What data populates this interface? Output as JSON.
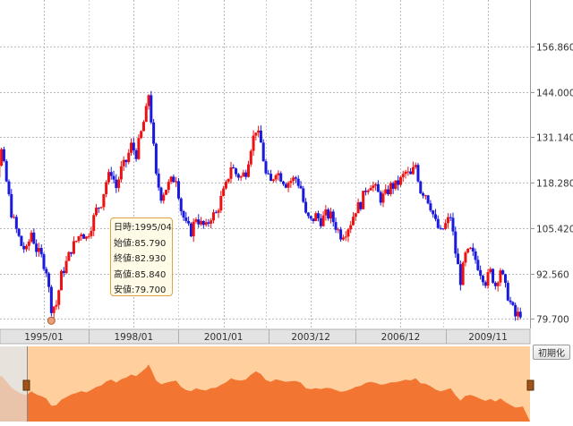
{
  "chart_data": {
    "type": "candlestick",
    "title": "",
    "xlabel": "",
    "ylabel": "",
    "x_tick_labels": [
      "1995/01",
      "1998/01",
      "2001/01",
      "2003/12",
      "2006/12",
      "2009/11"
    ],
    "y_tick_labels": [
      "156.860",
      "144.000",
      "131.140",
      "118.280",
      "105.420",
      "92.560",
      "79.700"
    ],
    "ylim": [
      77.0,
      170.0
    ],
    "grid": true,
    "up_color": "#ee1111",
    "down_color": "#1a1adf",
    "series": [
      {
        "points": [
          [
            "1992/10",
            128.5
          ],
          [
            "1992/12",
            130.6
          ],
          [
            "1993/02",
            125.0
          ],
          [
            "1993/04",
            116.8
          ],
          [
            "1993/06",
            121.0
          ],
          [
            "1993/08",
            127.2
          ],
          [
            "1993/10",
            118.5
          ],
          [
            "1993/12",
            109.8
          ],
          [
            "1994/02",
            104.9
          ],
          [
            "1994/04",
            100.5
          ],
          [
            "1994/06",
            98.9
          ],
          [
            "1994/08",
            104.3
          ],
          [
            "1994/10",
            99.4
          ],
          [
            "1994/12",
            97.2
          ],
          [
            "1995/02",
            93.5
          ],
          [
            "1995/03",
            88.0
          ],
          [
            "1995/04",
            82.93
          ],
          [
            "1995/06",
            83.8
          ],
          [
            "1995/08",
            92.0
          ],
          [
            "1995/10",
            95.6
          ],
          [
            "1995/12",
            99.5
          ],
          [
            "1996/02",
            101.8
          ],
          [
            "1996/04",
            104.5
          ],
          [
            "1996/06",
            102.6
          ],
          [
            "1996/08",
            106.2
          ],
          [
            "1996/10",
            110.5
          ],
          [
            "1996/12",
            112.7
          ],
          [
            "1997/02",
            118.6
          ],
          [
            "1997/04",
            121.4
          ],
          [
            "1997/06",
            116.9
          ],
          [
            "1997/08",
            122.0
          ],
          [
            "1997/10",
            124.3
          ],
          [
            "1997/12",
            128.8
          ],
          [
            "1998/02",
            126.4
          ],
          [
            "1998/04",
            132.3
          ],
          [
            "1998/06",
            138.5
          ],
          [
            "1998/07",
            143.4
          ],
          [
            "1998/08",
            136.2
          ],
          [
            "1998/10",
            119.8
          ],
          [
            "1998/12",
            114.5
          ],
          [
            "1999/02",
            116.8
          ],
          [
            "1999/04",
            118.7
          ],
          [
            "1999/06",
            119.9
          ],
          [
            "1999/08",
            110.7
          ],
          [
            "1999/10",
            106.2
          ],
          [
            "1999/12",
            104.4
          ],
          [
            "2000/02",
            108.6
          ],
          [
            "2000/04",
            106.5
          ],
          [
            "2000/06",
            105.6
          ],
          [
            "2000/08",
            108.8
          ],
          [
            "2000/10",
            109.4
          ],
          [
            "2000/12",
            113.7
          ],
          [
            "2001/02",
            117.3
          ],
          [
            "2001/04",
            123.1
          ],
          [
            "2001/06",
            120.8
          ],
          [
            "2001/08",
            119.8
          ],
          [
            "2001/10",
            121.5
          ],
          [
            "2001/12",
            128.6
          ],
          [
            "2002/02",
            133.5
          ],
          [
            "2002/04",
            129.4
          ],
          [
            "2002/06",
            120.5
          ],
          [
            "2002/08",
            118.2
          ],
          [
            "2002/10",
            121.8
          ],
          [
            "2002/12",
            119.9
          ],
          [
            "2003/02",
            118.1
          ],
          [
            "2003/04",
            118.9
          ],
          [
            "2003/06",
            119.5
          ],
          [
            "2003/08",
            116.8
          ],
          [
            "2003/10",
            108.9
          ],
          [
            "2003/12",
            107.3
          ],
          [
            "2004/02",
            108.9
          ],
          [
            "2004/04",
            107.5
          ],
          [
            "2004/06",
            109.2
          ],
          [
            "2004/08",
            108.8
          ],
          [
            "2004/10",
            106.0
          ],
          [
            "2004/12",
            103.5
          ],
          [
            "2005/02",
            104.6
          ],
          [
            "2005/04",
            107.1
          ],
          [
            "2005/06",
            110.8
          ],
          [
            "2005/08",
            112.3
          ],
          [
            "2005/10",
            116.5
          ],
          [
            "2005/12",
            118.1
          ],
          [
            "2006/02",
            116.4
          ],
          [
            "2006/04",
            113.8
          ],
          [
            "2006/06",
            114.9
          ],
          [
            "2006/08",
            117.2
          ],
          [
            "2006/10",
            117.5
          ],
          [
            "2006/12",
            119.0
          ],
          [
            "2007/02",
            121.2
          ],
          [
            "2007/04",
            120.1
          ],
          [
            "2007/06",
            123.4
          ],
          [
            "2007/08",
            116.1
          ],
          [
            "2007/10",
            115.2
          ],
          [
            "2007/12",
            111.7
          ],
          [
            "2008/02",
            106.9
          ],
          [
            "2008/04",
            104.0
          ],
          [
            "2008/06",
            106.4
          ],
          [
            "2008/08",
            108.8
          ],
          [
            "2008/10",
            98.5
          ],
          [
            "2008/12",
            90.6
          ],
          [
            "2009/02",
            97.6
          ],
          [
            "2009/04",
            98.9
          ],
          [
            "2009/06",
            96.5
          ],
          [
            "2009/08",
            93.1
          ],
          [
            "2009/10",
            90.3
          ],
          [
            "2009/12",
            93.0
          ],
          [
            "2010/02",
            89.3
          ],
          [
            "2010/04",
            93.9
          ],
          [
            "2010/06",
            88.4
          ],
          [
            "2010/08",
            84.2
          ],
          [
            "2010/10",
            80.4
          ],
          [
            "2010/12",
            81.4
          ],
          [
            "2011/01",
            82.1
          ]
        ]
      }
    ],
    "tooltip": {
      "date_label": "日時:",
      "date": "1995/04",
      "open_label": "始値:",
      "open": "85.790",
      "close_label": "終値:",
      "close": "82.930",
      "high_label": "高値:",
      "high": "85.840",
      "low_label": "安値:",
      "low": "79.700"
    }
  },
  "controls": {
    "reset_label": "初期化"
  },
  "colors": {
    "navigator_fill": "#f0661e",
    "navigator_background": "#ffcf9e",
    "navigator_outside": "#e8e2dc",
    "handle": "#a0541a"
  }
}
